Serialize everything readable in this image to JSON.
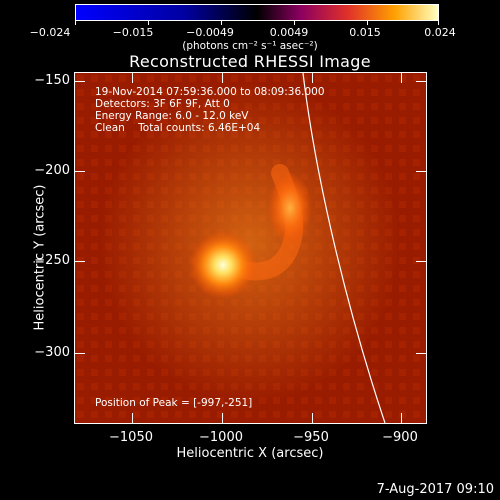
{
  "colorbar": {
    "labels": [
      "−0.024",
      "−0.015",
      "−0.0049",
      "0.0049",
      "0.015",
      "0.024"
    ],
    "units": "(photons cm⁻² s⁻¹ asec⁻²)"
  },
  "title": "Reconstructed RHESSI Image",
  "info": {
    "time_range": "19-Nov-2014 07:59:36.000 to 08:09:36.000",
    "detectors": "Detectors: 3F 6F 9F, Att 0",
    "energy": "Energy Range: 6.0 - 12.0 keV",
    "clean": "Clean    Total counts: 6.46E+04",
    "peak": "Position of Peak = [-997,-251]"
  },
  "axes": {
    "xlabel": "Heliocentric X (arcsec)",
    "ylabel": "Heliocentric Y (arcsec)",
    "xticks": [
      "−1050",
      "−1000",
      "−950",
      "−900"
    ],
    "yticks": [
      "−150",
      "−200",
      "−250",
      "−300"
    ]
  },
  "datestamp": "7-Aug-2017 09:10"
}
